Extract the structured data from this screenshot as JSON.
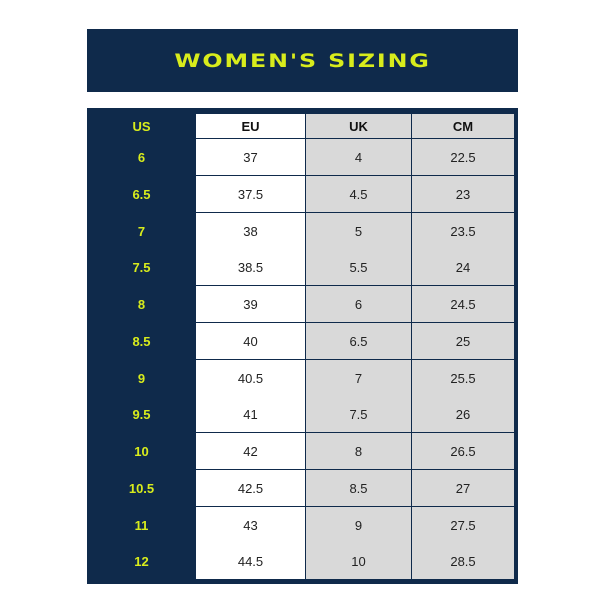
{
  "title": "WOMEN'S SIZING",
  "columns": [
    "US",
    "EU",
    "UK",
    "CM"
  ],
  "rows": [
    [
      "6",
      "37",
      "4",
      "22.5"
    ],
    [
      "6.5",
      "37.5",
      "4.5",
      "23"
    ],
    [
      "7",
      "38",
      "5",
      "23.5"
    ],
    [
      "7.5",
      "38.5",
      "5.5",
      "24"
    ],
    [
      "8",
      "39",
      "6",
      "24.5"
    ],
    [
      "8.5",
      "40",
      "6.5",
      "25"
    ],
    [
      "9",
      "40.5",
      "7",
      "25.5"
    ],
    [
      "9.5",
      "41",
      "7.5",
      "26"
    ],
    [
      "10",
      "42",
      "8",
      "26.5"
    ],
    [
      "10.5",
      "42.5",
      "8.5",
      "27"
    ],
    [
      "11",
      "43",
      "9",
      "27.5"
    ],
    [
      "12",
      "44.5",
      "10",
      "28.5"
    ]
  ],
  "colors": {
    "navy": "#0f2a4b",
    "accent": "#d8ec1c",
    "gray": "#d9d9d9"
  }
}
